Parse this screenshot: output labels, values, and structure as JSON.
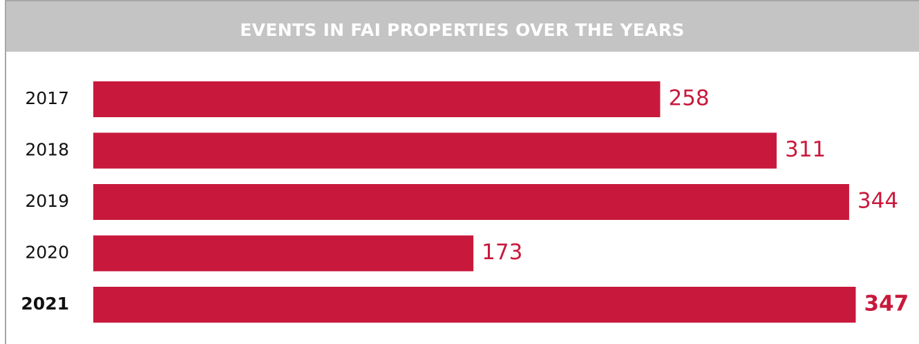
{
  "chart_data": {
    "type": "bar",
    "orientation": "horizontal",
    "title": "EVENTS IN FAI PROPERTIES OVER THE YEARS",
    "categories": [
      "2017",
      "2018",
      "2019",
      "2020",
      "2021"
    ],
    "values": [
      258,
      311,
      344,
      173,
      347
    ],
    "color": "#c8193c",
    "highlight": 4
  }
}
